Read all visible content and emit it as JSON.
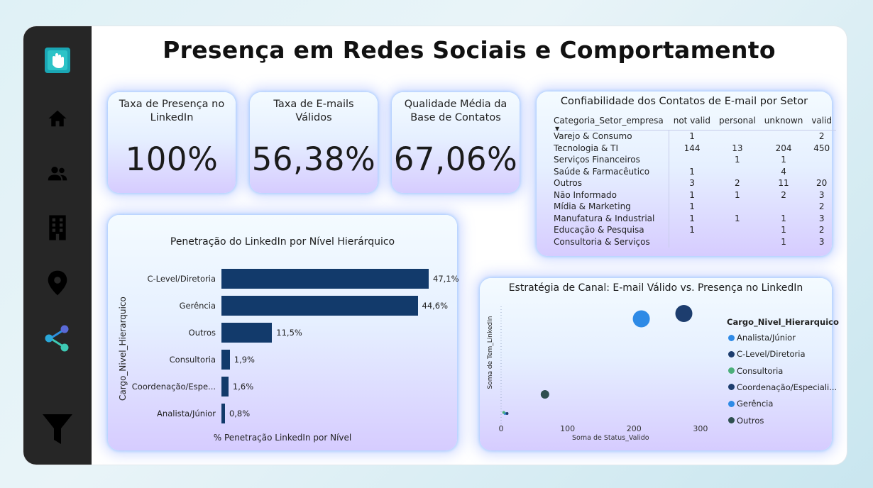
{
  "title": "Presença em Redes Sociais e Comportamento",
  "sidebar": {
    "items": [
      {
        "name": "logo",
        "icon": "hand-logo-icon"
      },
      {
        "name": "home",
        "icon": "home-icon"
      },
      {
        "name": "people",
        "icon": "people-icon"
      },
      {
        "name": "building",
        "icon": "building-icon"
      },
      {
        "name": "location",
        "icon": "location-pin-icon"
      },
      {
        "name": "share",
        "icon": "share-icon",
        "active": true
      },
      {
        "name": "filter",
        "icon": "filter-icon"
      }
    ],
    "accent": "#3ec9b4"
  },
  "kpis": [
    {
      "label": "Taxa de Presença no LinkedIn",
      "value": "100%"
    },
    {
      "label": "Taxa de E-mails Válidos",
      "value": "56,38%"
    },
    {
      "label": "Qualidade Média da Base de Contatos",
      "value": "67,06%"
    }
  ],
  "matrix": {
    "title": "Confiabilidade dos Contatos de E-mail por Setor",
    "headers": [
      "Categoria_Setor_empresa",
      "not valid",
      "personal",
      "unknown",
      "valid"
    ],
    "rows": [
      [
        "Varejo & Consumo",
        "1",
        "",
        "",
        "2"
      ],
      [
        "Tecnologia & TI",
        "144",
        "13",
        "204",
        "450"
      ],
      [
        "Serviços Financeiros",
        "",
        "1",
        "1",
        ""
      ],
      [
        "Saúde & Farmacêutico",
        "1",
        "",
        "4",
        ""
      ],
      [
        "Outros",
        "3",
        "2",
        "11",
        "20"
      ],
      [
        "Não Informado",
        "1",
        "1",
        "2",
        "3"
      ],
      [
        "Mídia & Marketing",
        "1",
        "",
        "",
        "2"
      ],
      [
        "Manufatura & Industrial",
        "1",
        "1",
        "1",
        "3"
      ],
      [
        "Educação & Pesquisa",
        "1",
        "",
        "1",
        "2"
      ],
      [
        "Consultoria & Serviços",
        "",
        "",
        "1",
        "3"
      ]
    ]
  },
  "chart_data": [
    {
      "type": "bar",
      "orientation": "horizontal",
      "title": "Penetração do LinkedIn por Nível Hierárquico",
      "ylabel": "Cargo_Nivel_Hierarquico",
      "xlabel": "% Penetração LinkedIn por Nível",
      "categories": [
        "C-Level/Diretoria",
        "Gerência",
        "Outros",
        "Consultoria",
        "Coordenação/Espe...",
        "Analista/Júnior"
      ],
      "values": [
        47.1,
        44.6,
        11.5,
        1.9,
        1.6,
        0.8
      ],
      "value_labels": [
        "47,1%",
        "44,6%",
        "11,5%",
        "1,9%",
        "1,6%",
        "0,8%"
      ],
      "xlim": [
        0,
        47.1
      ],
      "color": "#123a6b"
    },
    {
      "type": "scatter",
      "title": "Estratégia de Canal: E-mail Válido vs. Presença no LinkedIn",
      "xlabel": "Soma de Status_Valido",
      "ylabel": "Soma de Tem_LinkedIn",
      "xlim": [
        0,
        330
      ],
      "x_ticks": [
        "0",
        "100",
        "200",
        "300"
      ],
      "x_tick_values": [
        0,
        100,
        200,
        300
      ],
      "legend_title": "Cargo_Nivel_Hierarquico",
      "series": [
        {
          "name": "Analista/Júnior",
          "color": "#2e8ae6",
          "x": 6,
          "y": 0.06,
          "size": 2
        },
        {
          "name": "C-Level/Diretoria",
          "color": "#1d3d6e",
          "x": 275,
          "y": 1.0,
          "size": 12
        },
        {
          "name": "Consultoria",
          "color": "#4caf7a",
          "x": 4,
          "y": 0.07,
          "size": 2
        },
        {
          "name": "Coordenação/Especiali...",
          "color": "#1d3d6e",
          "x": 9,
          "y": 0.06,
          "size": 2
        },
        {
          "name": "Gerência",
          "color": "#2e8ae6",
          "x": 211,
          "y": 0.95,
          "size": 12
        },
        {
          "name": "Outros",
          "color": "#2f4f4f",
          "x": 66,
          "y": 0.24,
          "size": 6
        }
      ]
    }
  ]
}
